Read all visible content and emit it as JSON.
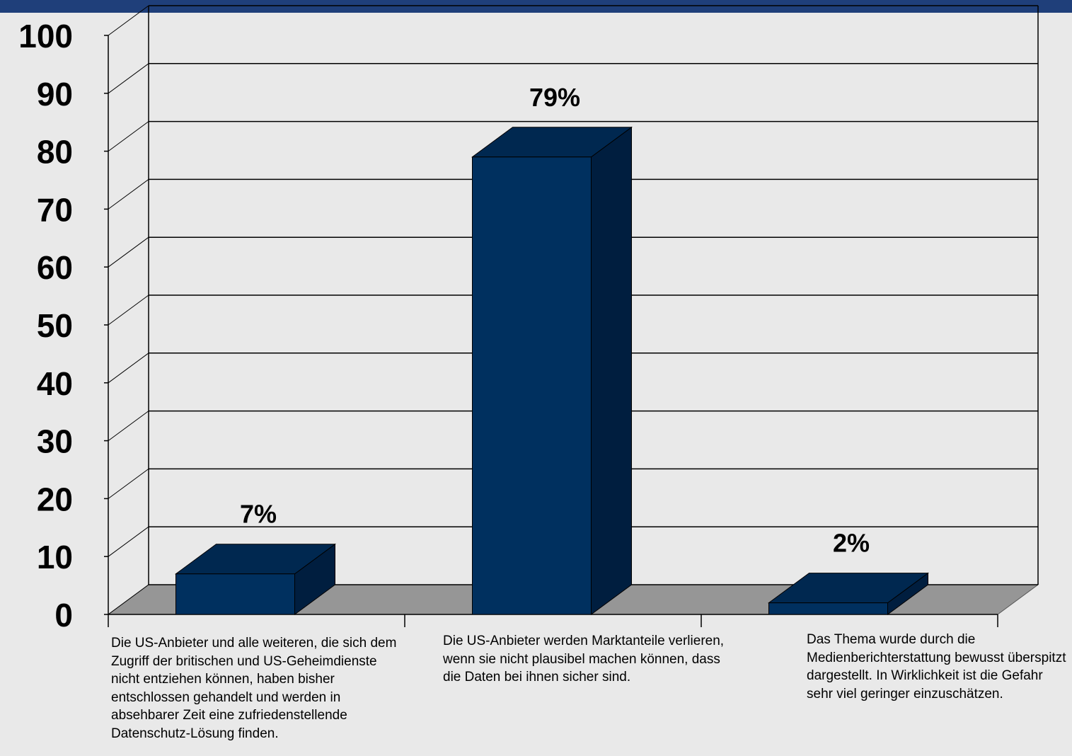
{
  "colors": {
    "background": "#e9e9e9",
    "top_band": "#1f3f7a",
    "bar_front": "#00305f",
    "bar_top": "#002850",
    "bar_side": "#001e3f",
    "floor": "#969696",
    "gridline": "#000000"
  },
  "chart_data": {
    "type": "bar",
    "style": "3d-column",
    "categories": [
      "Die US-Anbieter und alle weiteren, die sich dem Zugriff der britischen und US-Geheimdienste nicht entziehen können, haben bisher entschlossen gehandelt und werden in absehbarer Zeit eine zufriedenstellende Datenschutz-Lösung finden.",
      "Die US-Anbieter werden Marktanteile verlieren, wenn sie nicht plausibel machen können, dass die Daten bei ihnen sicher sind.",
      "Das Thema wurde durch die Medienberichterstattung bewusst überspitzt dargestellt. In Wirklichkeit ist die Gefahr sehr viel geringer einzuschätzen."
    ],
    "values": [
      7,
      79,
      2
    ],
    "data_labels": [
      "7%",
      "79%",
      "2%"
    ],
    "y_ticks": [
      "0",
      "10",
      "20",
      "30",
      "40",
      "50",
      "60",
      "70",
      "80",
      "90",
      "100"
    ],
    "ylim": [
      0,
      100
    ],
    "grid": true,
    "legend": "none",
    "title": "",
    "xlabel": "",
    "ylabel": ""
  }
}
